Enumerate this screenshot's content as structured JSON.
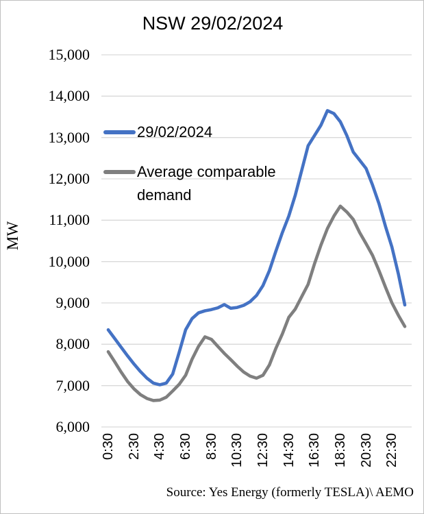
{
  "chart_data": {
    "type": "line",
    "title": "NSW 29/02/2024",
    "ylabel": "MW",
    "ylim": [
      6000,
      15000
    ],
    "ytick_step": 1000,
    "ytick_labels": [
      "15,000",
      "14,000",
      "13,000",
      "12,000",
      "11,000",
      "10,000",
      "9,000",
      "8,000",
      "7,000",
      "6,000"
    ],
    "grid": "horizontal",
    "legend_position": "inside-top-left",
    "x": [
      "0:30",
      "1:00",
      "1:30",
      "2:00",
      "2:30",
      "3:00",
      "3:30",
      "4:00",
      "4:30",
      "5:00",
      "5:30",
      "6:00",
      "6:30",
      "7:00",
      "7:30",
      "8:00",
      "8:30",
      "9:00",
      "9:30",
      "10:00",
      "10:30",
      "11:00",
      "11:30",
      "12:00",
      "12:30",
      "13:00",
      "13:30",
      "14:00",
      "14:30",
      "15:00",
      "15:30",
      "16:00",
      "16:30",
      "17:00",
      "17:30",
      "18:00",
      "18:30",
      "19:00",
      "19:30",
      "20:00",
      "20:30",
      "21:00",
      "21:30",
      "22:00",
      "22:30",
      "23:00",
      "23:30"
    ],
    "xtick_indices": [
      0,
      4,
      8,
      12,
      16,
      20,
      24,
      28,
      32,
      36,
      40,
      44
    ],
    "series": [
      {
        "name": "29/02/2024",
        "color": "#4472C4",
        "values": [
          8350,
          8140,
          7930,
          7720,
          7520,
          7340,
          7180,
          7060,
          7020,
          7060,
          7280,
          7800,
          8350,
          8620,
          8760,
          8810,
          8840,
          8880,
          8960,
          8870,
          8890,
          8940,
          9030,
          9180,
          9420,
          9780,
          10250,
          10700,
          11100,
          11600,
          12200,
          12800,
          13050,
          13300,
          13650,
          13580,
          13380,
          13050,
          12650,
          12450,
          12250,
          11850,
          11400,
          10850,
          10350,
          9700,
          8950
        ]
      },
      {
        "name": "Average comparable demand",
        "color": "#7F7F7F",
        "values": [
          7820,
          7580,
          7330,
          7100,
          6920,
          6780,
          6690,
          6640,
          6650,
          6720,
          6870,
          7030,
          7250,
          7640,
          7950,
          8180,
          8120,
          7950,
          7780,
          7630,
          7470,
          7330,
          7230,
          7180,
          7250,
          7500,
          7900,
          8250,
          8650,
          8850,
          9150,
          9450,
          9950,
          10400,
          10800,
          11100,
          11340,
          11200,
          11020,
          10700,
          10430,
          10150,
          9780,
          9380,
          9000,
          8700,
          8430
        ]
      }
    ],
    "source_note": "Source: Yes Energy (formerly TESLA)\\ AEMO",
    "colors": {
      "series_blue": "#4472C4",
      "series_gray": "#7F7F7F",
      "gridline": "#D9D9D9",
      "text": "#000000",
      "border": "#BFBFBF",
      "background": "#FFFFFF"
    }
  }
}
